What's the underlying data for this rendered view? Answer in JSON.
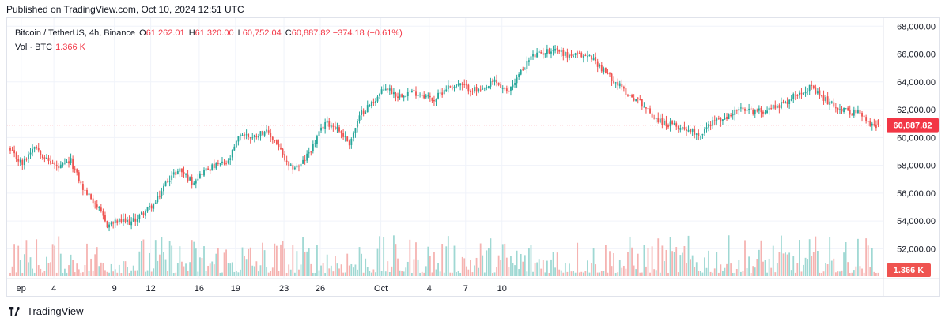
{
  "header": {
    "published": "Published on TradingView.com, Oct 10, 2024 12:51 UTC"
  },
  "legend": {
    "symbol": "Bitcoin / TetherUS, 4h, Binance",
    "o_label": "O",
    "o_value": "61,262.01",
    "h_label": "H",
    "h_value": "61,320.00",
    "l_label": "L",
    "l_value": "60,752.04",
    "c_label": "C",
    "c_value": "60,887.82",
    "change": "−374.18 (−0.61%)",
    "vol_label": "Vol · BTC",
    "vol_value": "1.366 K"
  },
  "footer": {
    "brand": "TradingView"
  },
  "colors": {
    "up": "#26a69a",
    "down": "#ef5350",
    "vol_up": "#9fd8d3",
    "vol_down": "#f5b3b1",
    "price_line": "#f23645"
  },
  "chart_data": {
    "type": "candlestick",
    "y_ticks": [
      "68,000.00",
      "66,000.00",
      "64,000.00",
      "62,000.00",
      "60,000.00",
      "58,000.00",
      "56,000.00",
      "54,000.00",
      "52,000.00"
    ],
    "y_tick_values": [
      68000,
      66000,
      64000,
      62000,
      60000,
      58000,
      56000,
      54000,
      52000
    ],
    "ylim": [
      51000,
      68300
    ],
    "x_ticks": [
      "ep",
      "4",
      "9",
      "12",
      "16",
      "19",
      "23",
      "26",
      "Oct",
      "4",
      "7",
      "10"
    ],
    "x_tick_days": [
      1.3,
      4,
      9,
      12,
      16,
      19,
      23,
      26,
      31,
      35,
      38,
      41
    ],
    "x_start_day": 0.4,
    "bars_per_day": 6,
    "last_price_label": "60,887.82",
    "last_price": 60887.82,
    "volume_label": "1.366 K",
    "close_path": [
      [
        0,
        59000
      ],
      [
        6,
        58100
      ],
      [
        12,
        59500
      ],
      [
        18,
        58400
      ],
      [
        24,
        57800
      ],
      [
        30,
        58300
      ],
      [
        36,
        56300
      ],
      [
        42,
        55300
      ],
      [
        48,
        53700
      ],
      [
        54,
        54000
      ],
      [
        60,
        53900
      ],
      [
        66,
        54600
      ],
      [
        72,
        55300
      ],
      [
        78,
        57000
      ],
      [
        84,
        57700
      ],
      [
        90,
        56800
      ],
      [
        96,
        57600
      ],
      [
        102,
        58000
      ],
      [
        108,
        58200
      ],
      [
        114,
        60300
      ],
      [
        120,
        60000
      ],
      [
        126,
        60500
      ],
      [
        132,
        59600
      ],
      [
        138,
        57800
      ],
      [
        144,
        58000
      ],
      [
        150,
        59400
      ],
      [
        156,
        61100
      ],
      [
        162,
        60700
      ],
      [
        168,
        59600
      ],
      [
        174,
        61800
      ],
      [
        180,
        62600
      ],
      [
        186,
        63600
      ],
      [
        192,
        63000
      ],
      [
        198,
        63300
      ],
      [
        204,
        63100
      ],
      [
        210,
        62700
      ],
      [
        216,
        63600
      ],
      [
        222,
        63800
      ],
      [
        228,
        63500
      ],
      [
        234,
        63300
      ],
      [
        240,
        64100
      ],
      [
        246,
        63200
      ],
      [
        252,
        64500
      ],
      [
        258,
        65800
      ],
      [
        264,
        66100
      ],
      [
        270,
        66400
      ],
      [
        276,
        65900
      ],
      [
        282,
        65900
      ],
      [
        288,
        65800
      ],
      [
        294,
        64800
      ],
      [
        300,
        64000
      ],
      [
        306,
        63100
      ],
      [
        312,
        62600
      ],
      [
        318,
        61600
      ],
      [
        324,
        61000
      ],
      [
        330,
        60800
      ],
      [
        336,
        60600
      ],
      [
        342,
        60200
      ],
      [
        348,
        61200
      ],
      [
        354,
        61300
      ],
      [
        360,
        62000
      ],
      [
        366,
        61900
      ],
      [
        372,
        61900
      ],
      [
        378,
        62200
      ],
      [
        384,
        62500
      ],
      [
        390,
        63200
      ],
      [
        396,
        63600
      ],
      [
        402,
        62900
      ],
      [
        408,
        62300
      ],
      [
        414,
        61900
      ],
      [
        420,
        61800
      ],
      [
        426,
        60900
      ],
      [
        430,
        60900
      ]
    ]
  }
}
